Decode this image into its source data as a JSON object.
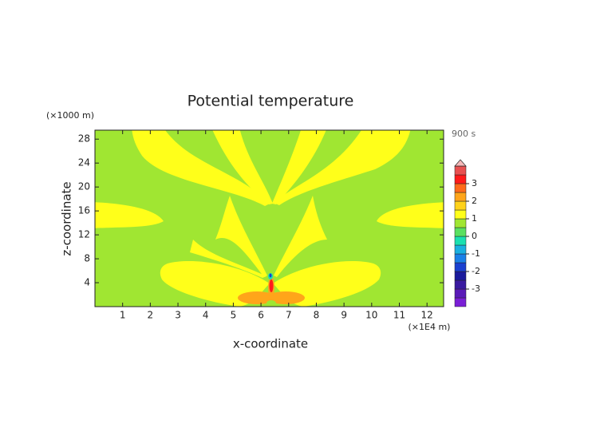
{
  "chart_data": {
    "type": "contour",
    "title": "Potential temperature",
    "x_label": "x-coordinate",
    "y_label": "z-coordinate",
    "x_unit": "(×1E4 m)",
    "y_unit": "(×1000 m)",
    "time_label": "900 s",
    "xlim": [
      0,
      12.6
    ],
    "ylim": [
      0,
      29.5
    ],
    "xticks": [
      1,
      2,
      3,
      4,
      5,
      6,
      7,
      8,
      9,
      10,
      11,
      12
    ],
    "yticks": [
      4,
      8,
      12,
      16,
      20,
      24,
      28
    ],
    "colorbar": {
      "lim": [
        -4,
        4
      ],
      "ticks": [
        -3,
        -2,
        -1,
        0,
        1,
        2,
        3
      ],
      "colors": [
        "#7a1fd6",
        "#5a1ab8",
        "#3a1aa0",
        "#1a1a9c",
        "#1a40d0",
        "#1a80e8",
        "#1ab0e0",
        "#1ae0b0",
        "#5ae060",
        "#a0e632",
        "#ffff1a",
        "#ffd21a",
        "#ffa51a",
        "#ff6a1a",
        "#ff1a1a",
        "#e85050"
      ],
      "extend_color": "#f5b8b8"
    }
  }
}
